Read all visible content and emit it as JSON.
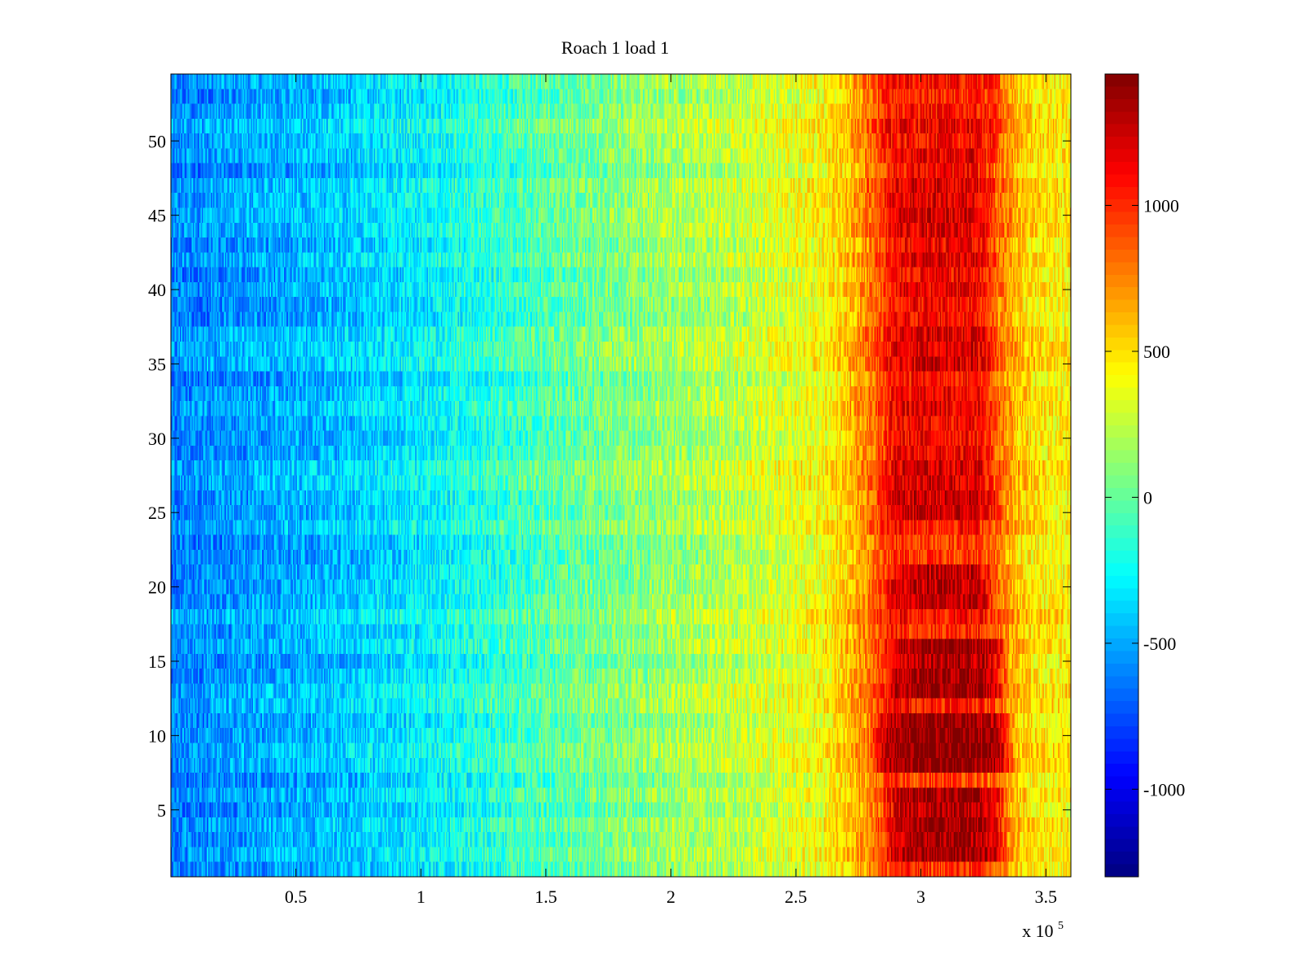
{
  "chart_data": {
    "type": "heatmap",
    "title": "Roach 1 load 1",
    "xlabel": "",
    "ylabel": "",
    "x_multiplier_label": "x 10",
    "x_multiplier_exponent": "5",
    "xlim": [
      0,
      3.6
    ],
    "ylim": [
      0.5,
      54.5
    ],
    "x_ticks": [
      0.5,
      1,
      1.5,
      2,
      2.5,
      3,
      3.5
    ],
    "x_tick_labels": [
      "0.5",
      "1",
      "1.5",
      "2",
      "2.5",
      "3",
      "3.5"
    ],
    "y_ticks": [
      5,
      10,
      15,
      20,
      25,
      30,
      35,
      40,
      45,
      50
    ],
    "y_tick_labels": [
      "5",
      "10",
      "15",
      "20",
      "25",
      "30",
      "35",
      "40",
      "45",
      "50"
    ],
    "rows": 54,
    "colormap": "jet",
    "colorbar": {
      "clim": [
        -1300,
        1450
      ],
      "ticks": [
        -1000,
        -500,
        0,
        500,
        1000
      ],
      "tick_labels": [
        "-1000",
        "-500",
        "0",
        "500",
        "1000"
      ]
    },
    "column_profile": {
      "x": [
        0,
        0.3,
        0.6,
        1.0,
        1.3,
        1.6,
        2.0,
        2.3,
        2.6,
        2.7,
        2.8,
        2.9,
        3.0,
        3.1,
        3.2,
        3.3,
        3.4,
        3.5,
        3.6
      ],
      "value": [
        -600,
        -520,
        -450,
        -300,
        -150,
        0,
        150,
        250,
        400,
        550,
        800,
        1050,
        1000,
        1000,
        1050,
        850,
        550,
        450,
        450
      ]
    },
    "hot_bands": [
      {
        "y": [
          2,
          6
        ],
        "x": [
          2.85,
          3.35
        ],
        "peak": 1350
      },
      {
        "y": [
          8,
          11
        ],
        "x": [
          2.8,
          3.38
        ],
        "peak": 1400
      },
      {
        "y": [
          13,
          16
        ],
        "x": [
          2.85,
          3.35
        ],
        "peak": 1350
      },
      {
        "y": [
          19,
          21
        ],
        "x": [
          2.85,
          3.3
        ],
        "peak": 1300
      },
      {
        "y": [
          25,
          26
        ],
        "x": [
          2.82,
          3.33
        ],
        "peak": 1250
      },
      {
        "y": [
          27,
          49
        ],
        "x": [
          2.85,
          3.3
        ],
        "peak": 1150
      },
      {
        "y": [
          50,
          54
        ],
        "x": [
          2.82,
          3.33
        ],
        "peak": 1050
      }
    ],
    "grid": false,
    "legend": "none"
  },
  "colors": {
    "background": "#ffffff",
    "axes": "#000000"
  }
}
